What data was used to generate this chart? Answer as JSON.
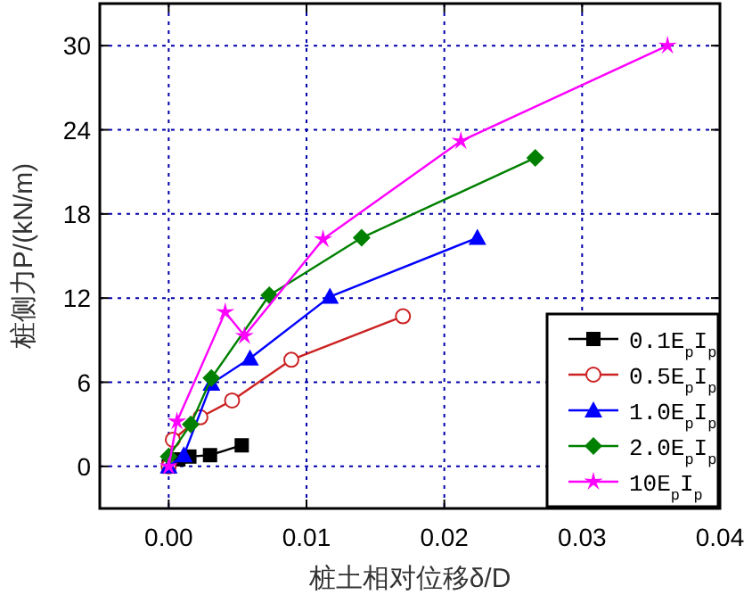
{
  "chart_data": {
    "type": "line",
    "xlabel": "桩土相对位移δ/D",
    "ylabel": "桩侧力P/(kN/m)",
    "xlim": [
      -0.005,
      0.04
    ],
    "xticks": [
      {
        "value": 0,
        "label": "0.00"
      },
      0.01,
      0.02,
      0.03,
      0.04
    ],
    "ylim": [
      -3,
      33
    ],
    "yticks": [
      0,
      6,
      12,
      18,
      24,
      30
    ],
    "grid": true,
    "legend": "bottom right",
    "series": [
      {
        "name": "0.1E$_{p}$I$_{p}$",
        "color": "#000000",
        "marker": "square",
        "x": [
          0,
          0.0007,
          0.0015,
          0.003,
          0.0053
        ],
        "values": [
          0,
          0.5,
          0.7,
          0.8,
          1.5
        ]
      },
      {
        "name": "0.5E$_{p}$I$_{p}$",
        "color": "#cc2222",
        "marker": "circle",
        "x": [
          0,
          0.0003,
          0.0023,
          0.0046,
          0.0089,
          0.017
        ],
        "values": [
          0,
          1.9,
          3.5,
          4.7,
          7.6,
          10.7
        ]
      },
      {
        "name": "1.0E$_{p}$I$_{p}$",
        "color": "#0000ff",
        "marker": "triangle",
        "x": [
          0,
          0.0011,
          0.0031,
          0.0059,
          0.0117,
          0.0224
        ],
        "values": [
          0,
          0.8,
          5.9,
          7.7,
          12.1,
          16.3
        ]
      },
      {
        "name": "2.0E$_{p}$I$_{p}$",
        "color": "#008000",
        "marker": "diamond",
        "x": [
          0,
          0.0016,
          0.0031,
          0.0073,
          0.014,
          0.0266
        ],
        "values": [
          0.7,
          3.0,
          6.3,
          12.2,
          16.3,
          22.0
        ]
      },
      {
        "name": "10E$_{p}$I$_{p}$",
        "color": "#ff00ff",
        "marker": "star",
        "x": [
          0,
          0.0006,
          0.0041,
          0.0055,
          0.0112,
          0.0212,
          0.0362
        ],
        "values": [
          0,
          3.2,
          11.0,
          9.3,
          16.2,
          23.2,
          30.0
        ]
      }
    ]
  }
}
